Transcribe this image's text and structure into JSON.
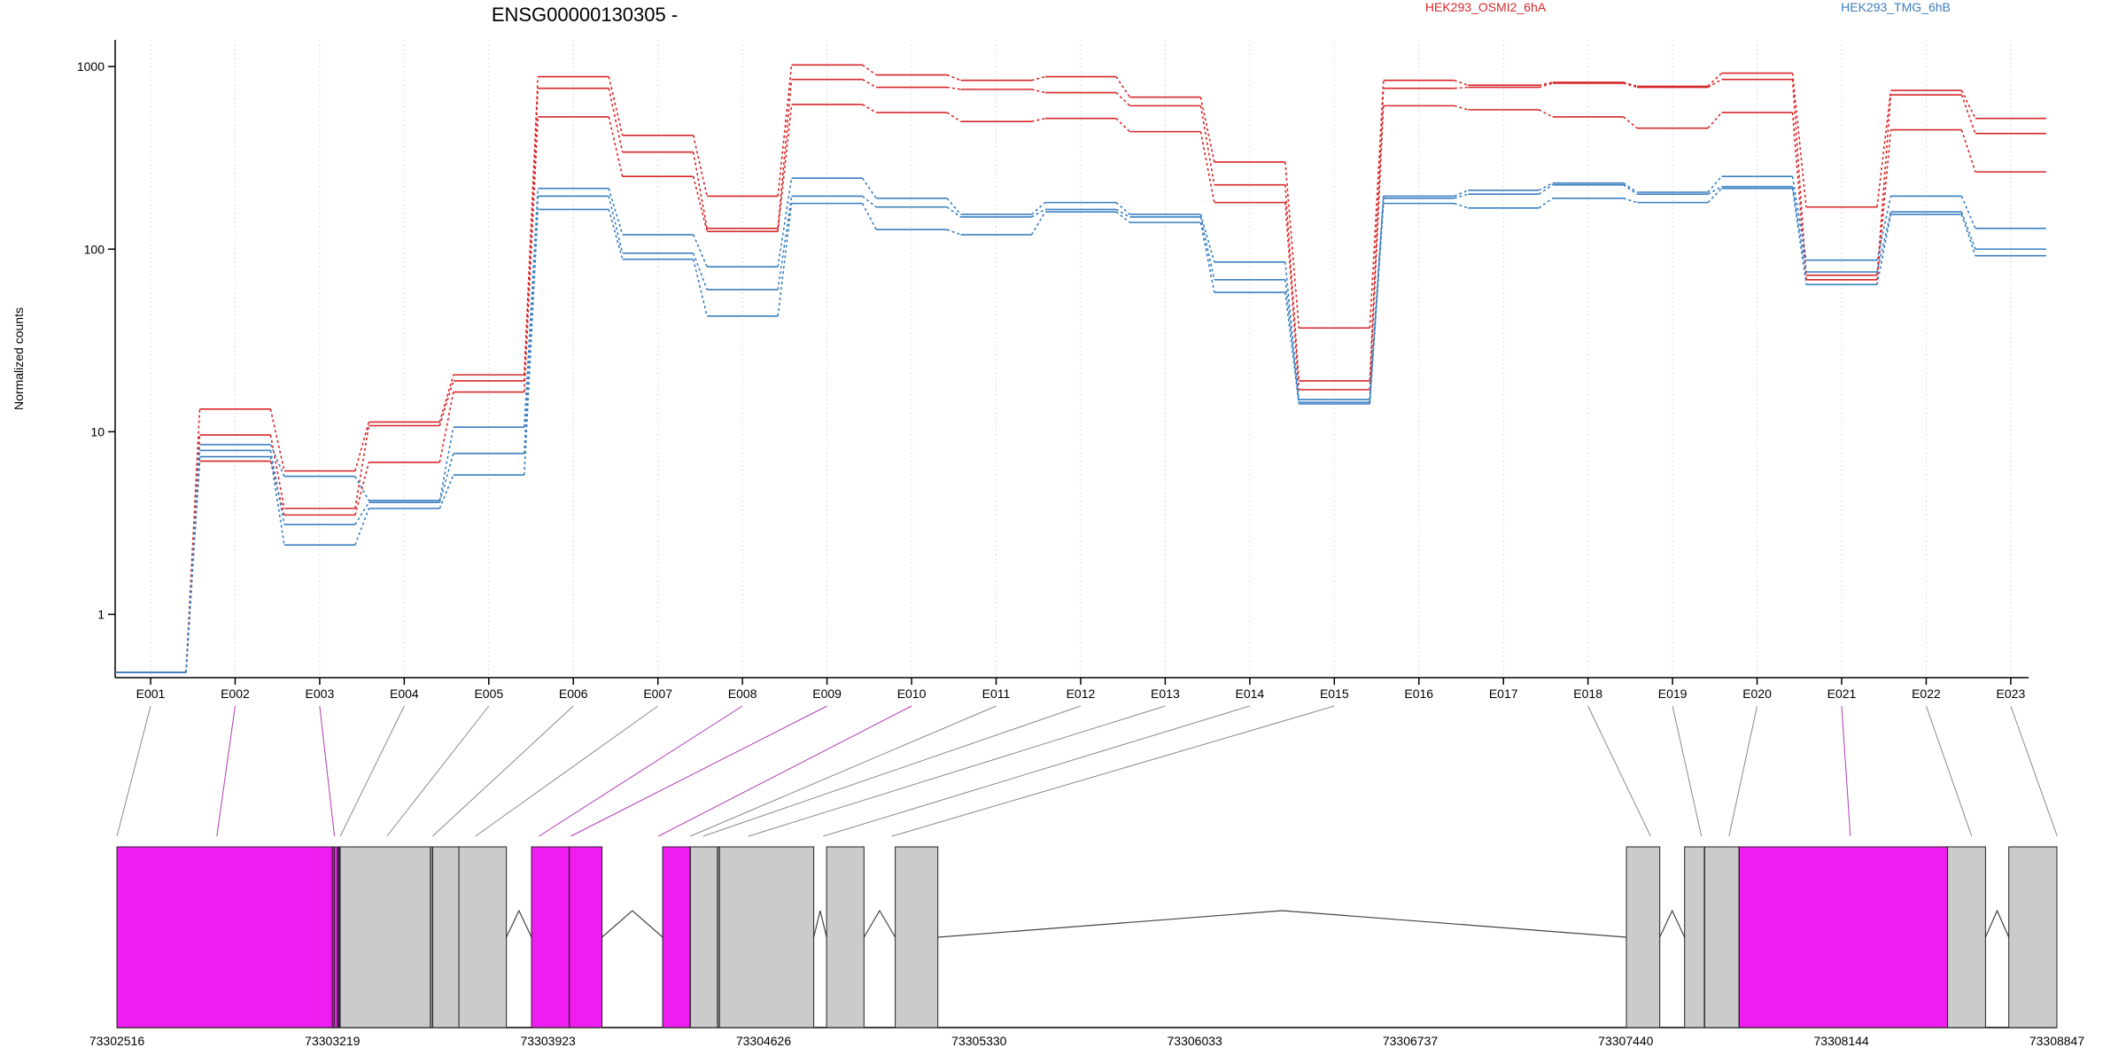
{
  "chart_data": {
    "type": "line",
    "title": "ENSG00000130305 -",
    "ylabel": "Normalized counts",
    "xlabel": "",
    "y_scale": "log",
    "ylim": [
      0.45,
      1400
    ],
    "y_ticks": [
      1,
      10,
      100,
      1000
    ],
    "y_tick_labels": [
      "1",
      "10",
      "100",
      "1000"
    ],
    "grid": "vertical dotted lines at each exon",
    "legend_placement": "top",
    "categories": [
      "E001",
      "E002",
      "E003",
      "E004",
      "E005",
      "E006",
      "E007",
      "E008",
      "E009",
      "E010",
      "E011",
      "E012",
      "E013",
      "E014",
      "E015",
      "E016",
      "E017",
      "E018",
      "E019",
      "E020",
      "E021",
      "E022",
      "E023"
    ],
    "legend": [
      {
        "name": "HEK293_OSMI2_6hA",
        "color": "#d62728"
      },
      {
        "name": "HEK293_TMG_6hB",
        "color": "#3a7fc0"
      }
    ],
    "series": [
      {
        "group": "HEK293_OSMI2_6hA",
        "color": "#d62728",
        "values": [
          0.48,
          13.3,
          6.1,
          11.3,
          20.5,
          880,
          420,
          195,
          1020,
          900,
          840,
          880,
          680,
          300,
          37,
          840,
          790,
          820,
          780,
          920,
          170,
          740,
          520
        ]
      },
      {
        "group": "HEK293_OSMI2_6hA",
        "color": "#d62728",
        "values": [
          0.48,
          9.6,
          3.8,
          10.8,
          19,
          760,
          340,
          130,
          850,
          770,
          750,
          720,
          610,
          225,
          19,
          760,
          770,
          810,
          770,
          850,
          72,
          700,
          430
        ]
      },
      {
        "group": "HEK293_OSMI2_6hA",
        "color": "#d62728",
        "values": [
          0.48,
          6.9,
          3.5,
          6.8,
          16.5,
          530,
          250,
          125,
          620,
          560,
          500,
          520,
          440,
          180,
          17,
          610,
          580,
          530,
          460,
          560,
          68,
          450,
          265
        ]
      },
      {
        "group": "HEK293_TMG_6hB",
        "color": "#3a7fc0",
        "values": [
          0.48,
          8.5,
          5.7,
          4.2,
          10.6,
          215,
          120,
          80,
          245,
          190,
          155,
          180,
          155,
          85,
          15,
          195,
          210,
          230,
          205,
          250,
          87,
          195,
          130
        ]
      },
      {
        "group": "HEK293_TMG_6hB",
        "color": "#3a7fc0",
        "values": [
          0.48,
          7.9,
          3.1,
          4.1,
          7.6,
          195,
          95,
          60,
          195,
          170,
          150,
          165,
          150,
          68,
          14.5,
          190,
          200,
          225,
          200,
          220,
          75,
          160,
          100
        ]
      },
      {
        "group": "HEK293_TMG_6hB",
        "color": "#3a7fc0",
        "values": [
          0.48,
          7.3,
          2.4,
          3.8,
          5.8,
          165,
          88,
          43,
          178,
          128,
          120,
          160,
          140,
          58,
          14.2,
          178,
          168,
          190,
          180,
          215,
          64,
          155,
          92
        ]
      }
    ],
    "gene_model": {
      "coord_ticks": [
        "73302516",
        "73303219",
        "73303923",
        "73304626",
        "73305330",
        "73306033",
        "73306737",
        "73307440",
        "73308144",
        "73308847"
      ],
      "range": [
        73302516,
        73308847
      ],
      "exon_fill": "#cbcbcb",
      "highlight_fill": "#f01df0",
      "exons": [
        {
          "start": 73302516,
          "end": 73303219,
          "highlight": true
        },
        {
          "start": 73303219,
          "end": 73303244,
          "highlight": true
        },
        {
          "start": 73303244,
          "end": 73303546,
          "highlight": false
        },
        {
          "start": 73303546,
          "end": 73303632,
          "highlight": false
        },
        {
          "start": 73303632,
          "end": 73303787,
          "highlight": false
        },
        {
          "start": 73303869,
          "end": 73303992,
          "highlight": true
        },
        {
          "start": 73303992,
          "end": 73304099,
          "highlight": true
        },
        {
          "start": 73304297,
          "end": 73304387,
          "highlight": true
        },
        {
          "start": 73304387,
          "end": 73304482,
          "highlight": false
        },
        {
          "start": 73304482,
          "end": 73304790,
          "highlight": false
        },
        {
          "start": 73304832,
          "end": 73304954,
          "highlight": false
        },
        {
          "start": 73305056,
          "end": 73305195,
          "highlight": false
        },
        {
          "start": 73307442,
          "end": 73307551,
          "highlight": false
        },
        {
          "start": 73307632,
          "end": 73307697,
          "highlight": false
        },
        {
          "start": 73307697,
          "end": 73307810,
          "highlight": false
        },
        {
          "start": 73307810,
          "end": 73308490,
          "highlight": true
        },
        {
          "start": 73308490,
          "end": 73308614,
          "highlight": false
        },
        {
          "start": 73308690,
          "end": 73308847,
          "highlight": false
        }
      ],
      "exon_dividers": [
        73303225,
        73303236,
        73303240,
        73303244,
        73303539,
        73303546,
        73303992,
        73304387,
        73304476,
        73304482,
        73307697,
        73307810,
        73308490
      ],
      "connectors": [
        {
          "exon": "E001",
          "pos": 73302516,
          "highlight": false
        },
        {
          "exon": "E002",
          "pos": 73302842,
          "highlight": true
        },
        {
          "exon": "E003",
          "pos": 73303226,
          "highlight": true
        },
        {
          "exon": "E004",
          "pos": 73303245,
          "highlight": false
        },
        {
          "exon": "E005",
          "pos": 73303397,
          "highlight": false
        },
        {
          "exon": "E006",
          "pos": 73303546,
          "highlight": false
        },
        {
          "exon": "E007",
          "pos": 73303686,
          "highlight": false
        },
        {
          "exon": "E008",
          "pos": 73303893,
          "highlight": true
        },
        {
          "exon": "E009",
          "pos": 73303997,
          "highlight": true
        },
        {
          "exon": "E010",
          "pos": 73304283,
          "highlight": true
        },
        {
          "exon": "E011",
          "pos": 73304387,
          "highlight": false
        },
        {
          "exon": "E012",
          "pos": 73304429,
          "highlight": false
        },
        {
          "exon": "E013",
          "pos": 73304577,
          "highlight": false
        },
        {
          "exon": "E014",
          "pos": 73304821,
          "highlight": false
        },
        {
          "exon": "E015",
          "pos": 73305045,
          "highlight": false
        },
        {
          "exon": "E018",
          "pos": 73307521,
          "highlight": false
        },
        {
          "exon": "E019",
          "pos": 73307687,
          "highlight": false
        },
        {
          "exon": "E020",
          "pos": 73307777,
          "highlight": false
        },
        {
          "exon": "E021",
          "pos": 73308173,
          "highlight": true
        },
        {
          "exon": "E022",
          "pos": 73308569,
          "highlight": false
        },
        {
          "exon": "E023",
          "pos": 73308848,
          "highlight": false
        }
      ]
    }
  }
}
